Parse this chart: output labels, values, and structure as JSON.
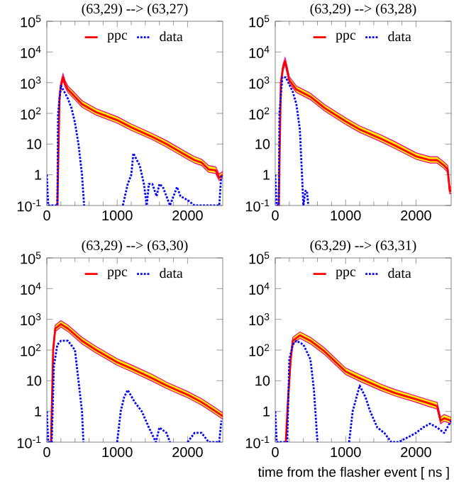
{
  "chart_data": [
    {
      "type": "line",
      "title": "(63,29) --> (63,27)",
      "log": "y",
      "legend": "top",
      "xlim": [
        0,
        2500
      ],
      "ylim": [
        0.1,
        100000
      ],
      "xticks": [
        0,
        1000,
        2000
      ],
      "yticks": [
        {
          "value": 0.1,
          "label": "10$^{-1}$"
        },
        1,
        10,
        {
          "value": 100,
          "label": "10$^{2}$"
        },
        {
          "value": 1000,
          "label": "10$^{3}$"
        },
        {
          "value": 10000,
          "label": "10$^{4}$"
        },
        {
          "value": 100000,
          "label": "10$^{5}$"
        }
      ],
      "series": [
        {
          "name": "ppc",
          "color": "#ff0000",
          "line_style": "solid",
          "x": [
            150,
            180,
            200,
            230,
            260,
            300,
            400,
            500,
            700,
            1000,
            1200,
            1500,
            1700,
            2000,
            2100,
            2200,
            2300,
            2400,
            2450,
            2500
          ],
          "values": [
            0.1,
            300,
            800,
            1500,
            900,
            600,
            350,
            200,
            110,
            60,
            35,
            17,
            10,
            4,
            3,
            2.5,
            1.5,
            1.4,
            0.8,
            1
          ],
          "lower": [
            0.1,
            240,
            640,
            1200,
            720,
            480,
            280,
            160,
            88,
            48,
            28,
            14,
            8,
            3.2,
            2.4,
            2,
            1.2,
            1.1,
            0.65,
            0.8
          ],
          "upper": [
            0.1,
            390,
            1040,
            1950,
            1170,
            780,
            455,
            260,
            143,
            78,
            45,
            22,
            13,
            5.2,
            3.9,
            3.2,
            2,
            1.8,
            1.05,
            1.3
          ]
        },
        {
          "name": "data",
          "color": "#0000ff",
          "line_style": "dotted",
          "x": [
            0,
            20,
            150,
            160,
            200,
            250,
            300,
            350,
            400,
            450,
            500,
            530,
            800,
            1080,
            1150,
            1200,
            1230,
            1280,
            1320,
            1380,
            1420,
            1450,
            1500,
            1560,
            1600,
            1650,
            1700,
            1750,
            1800,
            1850,
            1900,
            2000,
            2100,
            2450,
            2480
          ],
          "values": [
            1,
            0.1,
            0.1,
            100,
            800,
            500,
            300,
            150,
            50,
            10,
            1,
            0.1,
            null,
            0.1,
            0.5,
            1,
            5,
            3,
            2,
            0.5,
            0.1,
            0.5,
            0.5,
            0.2,
            0.5,
            0.4,
            0.2,
            0.1,
            0.2,
            0.4,
            0.2,
            0.15,
            0.1,
            0.1,
            1
          ]
        }
      ]
    },
    {
      "type": "line",
      "title": "(63,29) --> (63,28)",
      "log": "y",
      "legend": "top",
      "xlim": [
        0,
        2500
      ],
      "ylim": [
        0.1,
        100000
      ],
      "xticks": [
        0,
        1000,
        2000
      ],
      "yticks": [
        {
          "value": 0.1,
          "label": "10$^{-1}$"
        },
        1,
        10,
        {
          "value": 100,
          "label": "10$^{2}$"
        },
        {
          "value": 1000,
          "label": "10$^{3}$"
        },
        {
          "value": 10000,
          "label": "10$^{4}$"
        },
        {
          "value": 100000,
          "label": "10$^{5}$"
        }
      ],
      "series": [
        {
          "name": "ppc",
          "color": "#ff0000",
          "line_style": "solid",
          "x": [
            50,
            80,
            110,
            140,
            170,
            200,
            300,
            500,
            700,
            1000,
            1200,
            1500,
            1700,
            2000,
            2200,
            2300,
            2400,
            2450,
            2480,
            2500
          ],
          "values": [
            0.1,
            1000,
            3000,
            5000,
            2500,
            1200,
            600,
            350,
            150,
            55,
            30,
            15,
            9,
            4,
            3,
            3,
            2,
            1.5,
            0.3,
            0.3
          ],
          "lower": [
            0.1,
            800,
            2400,
            4000,
            2000,
            960,
            480,
            280,
            120,
            44,
            24,
            12,
            7.2,
            3.2,
            2.4,
            2.4,
            1.6,
            1.2,
            0.24,
            0.24
          ],
          "upper": [
            0.1,
            1300,
            3900,
            6500,
            3250,
            1560,
            780,
            455,
            195,
            72,
            39,
            20,
            12,
            5.2,
            3.9,
            3.9,
            2.6,
            2,
            0.4,
            0.4
          ]
        },
        {
          "name": "data",
          "color": "#0000ff",
          "line_style": "dotted",
          "x": [
            0,
            20,
            50,
            60,
            100,
            150,
            250,
            300,
            350,
            380,
            400,
            430,
            450,
            470
          ],
          "values": [
            1,
            0.1,
            0.1,
            100,
            1500,
            1500,
            500,
            200,
            30,
            1,
            0.1,
            0.3,
            0.3,
            0.1
          ]
        }
      ]
    },
    {
      "type": "line",
      "title": "(63,29) --> (63,30)",
      "log": "y",
      "legend": "top",
      "xlim": [
        0,
        2500
      ],
      "ylim": [
        0.1,
        100000
      ],
      "xticks": [
        0,
        1000,
        2000
      ],
      "yticks": [
        {
          "value": 0.1,
          "label": "10$^{-1}$"
        },
        1,
        10,
        {
          "value": 100,
          "label": "10$^{2}$"
        },
        {
          "value": 1000,
          "label": "10$^{3}$"
        },
        {
          "value": 10000,
          "label": "10$^{4}$"
        },
        {
          "value": 100000,
          "label": "10$^{5}$"
        }
      ],
      "series": [
        {
          "name": "ppc",
          "color": "#ff0000",
          "line_style": "solid",
          "x": [
            60,
            90,
            120,
            200,
            300,
            500,
            700,
            1000,
            1200,
            1500,
            1700,
            2000,
            2200,
            2400,
            2500
          ],
          "values": [
            0.1,
            100,
            500,
            700,
            500,
            200,
            100,
            40,
            25,
            12,
            7,
            3.5,
            2,
            1,
            0.7
          ],
          "lower": [
            0.1,
            80,
            400,
            560,
            400,
            160,
            80,
            32,
            20,
            9.6,
            5.6,
            2.8,
            1.6,
            0.8,
            0.56
          ],
          "upper": [
            0.1,
            130,
            650,
            910,
            650,
            260,
            130,
            52,
            33,
            16,
            9,
            4.5,
            2.6,
            1.3,
            0.9
          ]
        },
        {
          "name": "data",
          "color": "#0000ff",
          "line_style": "dotted",
          "x": [
            0,
            20,
            70,
            100,
            150,
            200,
            300,
            400,
            450,
            500,
            520,
            800,
            1000,
            1050,
            1100,
            1150,
            1250,
            1350,
            1450,
            1550,
            1600,
            1700,
            1750,
            1900,
            2000,
            2100,
            2200,
            2300,
            2450,
            2480
          ],
          "values": [
            1,
            0.1,
            0.1,
            30,
            150,
            200,
            200,
            100,
            10,
            1,
            0.1,
            null,
            0.1,
            1,
            3,
            5,
            2,
            1,
            0.3,
            0.1,
            0.3,
            0.2,
            0.1,
            null,
            0.1,
            0.2,
            0.2,
            0.1,
            0.1,
            0.5
          ]
        }
      ]
    },
    {
      "type": "line",
      "title": "(63,29) --> (63,31)",
      "xlabel": "time from the flasher event [ ns ]",
      "log": "y",
      "legend": "top",
      "xlim": [
        0,
        2500
      ],
      "ylim": [
        0.1,
        100000
      ],
      "xticks": [
        0,
        1000,
        2000
      ],
      "yticks": [
        {
          "value": 0.1,
          "label": "10$^{-1}$"
        },
        1,
        10,
        {
          "value": 100,
          "label": "10$^{2}$"
        },
        {
          "value": 1000,
          "label": "10$^{3}$"
        },
        {
          "value": 10000,
          "label": "10$^{4}$"
        },
        {
          "value": 100000,
          "label": "10$^{5}$"
        }
      ],
      "series": [
        {
          "name": "ppc",
          "color": "#ff0000",
          "line_style": "solid",
          "x": [
            150,
            180,
            220,
            250,
            350,
            500,
            700,
            1000,
            1200,
            1500,
            1700,
            2000,
            2200,
            2300,
            2350,
            2400,
            2500
          ],
          "values": [
            0.1,
            2,
            50,
            200,
            300,
            200,
            90,
            20,
            12,
            6,
            4,
            2.5,
            1.8,
            1.5,
            0.5,
            0.6,
            0.5
          ],
          "lower": [
            0.1,
            1.6,
            40,
            160,
            240,
            160,
            72,
            16,
            9.6,
            4.8,
            3.2,
            2,
            1.4,
            1.2,
            0.4,
            0.48,
            0.4
          ],
          "upper": [
            0.1,
            2.6,
            65,
            260,
            390,
            260,
            117,
            26,
            16,
            7.8,
            5.2,
            3.2,
            2.3,
            2,
            0.65,
            0.8,
            0.65
          ]
        },
        {
          "name": "data",
          "color": "#0000ff",
          "line_style": "dotted",
          "x": [
            0,
            20,
            170,
            200,
            250,
            300,
            400,
            500,
            550,
            600,
            800,
            1050,
            1100,
            1200,
            1280,
            1350,
            1450,
            1550,
            1650,
            1750,
            1900,
            2000,
            2100,
            2200,
            2300,
            2400,
            2500
          ],
          "values": [
            1,
            0.1,
            0.1,
            50,
            150,
            200,
            150,
            50,
            5,
            0.1,
            null,
            0.1,
            1,
            7,
            3,
            1,
            0.3,
            0.2,
            0.1,
            0.1,
            0.15,
            0.2,
            0.3,
            0.4,
            0.3,
            0.2,
            0.5
          ]
        }
      ]
    }
  ]
}
